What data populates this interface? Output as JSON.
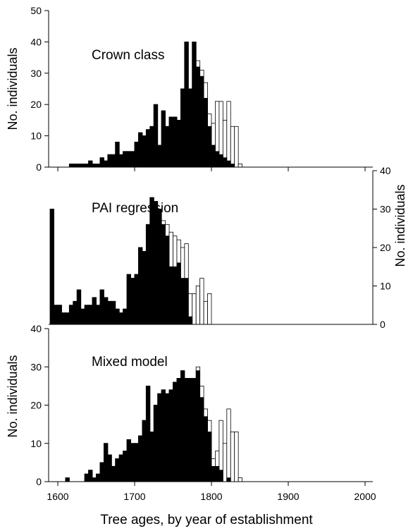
{
  "chart_data": [
    {
      "type": "bar",
      "title": "Crown class",
      "ylabel": "No. individuals",
      "xlabel": "",
      "xlim": [
        1600,
        2000
      ],
      "ylim": [
        0,
        50
      ],
      "yticks": [
        0,
        10,
        20,
        30,
        40,
        50
      ],
      "yaxis_side": "left",
      "bin_width": 5,
      "bin_start": 1590,
      "series": [
        {
          "fill": "#000000",
          "values": [
            0,
            0,
            0,
            0,
            0,
            1,
            1,
            1,
            1,
            1,
            2,
            1,
            1,
            3,
            2,
            4,
            4,
            8,
            4,
            5,
            5,
            5,
            8,
            11,
            10,
            12,
            13,
            20,
            7,
            18,
            13,
            16,
            16,
            15,
            25,
            40,
            25,
            40,
            32,
            29,
            22,
            13,
            7,
            5,
            4,
            3,
            2,
            1,
            0,
            0,
            0,
            0,
            0,
            0,
            0,
            0,
            0,
            0,
            0,
            0
          ]
        },
        {
          "fill": "#ffffff",
          "values": [
            0,
            0,
            0,
            0,
            0,
            1,
            1,
            1,
            1,
            1,
            2,
            1,
            1,
            3,
            2,
            4,
            4,
            8,
            4,
            5,
            5,
            5,
            8,
            11,
            10,
            12,
            13,
            20,
            7,
            18,
            13,
            16,
            16,
            15,
            25,
            40,
            25,
            40,
            34,
            31,
            27,
            17,
            14,
            21,
            21,
            15,
            21,
            13,
            13,
            1,
            0,
            0,
            0,
            0,
            0,
            0,
            0,
            0,
            0,
            0
          ]
        }
      ]
    },
    {
      "type": "bar",
      "title": "PAI regression",
      "ylabel": "No. individuals",
      "xlabel": "",
      "xlim": [
        1600,
        2000
      ],
      "ylim": [
        0,
        40
      ],
      "yticks": [
        0,
        10,
        20,
        30,
        40
      ],
      "yaxis_side": "right",
      "bin_width": 5,
      "bin_start": 1590,
      "series": [
        {
          "fill": "#000000",
          "values": [
            30,
            5,
            5,
            3,
            3,
            5,
            6,
            9,
            4,
            5,
            5,
            7,
            5,
            9,
            7,
            6,
            6,
            4,
            3,
            4,
            13,
            12,
            13,
            20,
            19,
            26,
            33,
            32,
            30,
            26,
            23,
            15,
            15,
            16,
            12,
            12,
            2,
            0,
            0,
            0,
            0,
            0,
            0,
            0,
            0,
            0,
            0,
            0,
            0,
            0,
            0,
            0,
            0,
            0,
            0,
            0,
            0,
            0,
            0,
            0
          ]
        },
        {
          "fill": "#ffffff",
          "values": [
            30,
            5,
            5,
            3,
            3,
            5,
            6,
            9,
            4,
            5,
            5,
            7,
            5,
            9,
            7,
            6,
            6,
            4,
            3,
            4,
            13,
            12,
            13,
            20,
            19,
            26,
            33,
            32,
            30,
            27,
            26,
            24,
            23,
            22,
            20,
            21,
            8,
            8,
            10,
            12,
            6,
            8,
            0,
            0,
            0,
            0,
            0,
            0,
            0,
            0,
            0,
            0,
            0,
            0,
            0,
            0,
            0,
            0,
            0,
            0
          ]
        }
      ]
    },
    {
      "type": "bar",
      "title": "Mixed model",
      "ylabel": "No. individuals",
      "xlabel": "",
      "xlim": [
        1600,
        2000
      ],
      "ylim": [
        0,
        40
      ],
      "yticks": [
        0,
        10,
        20,
        30,
        40
      ],
      "yaxis_side": "left",
      "bin_width": 5,
      "bin_start": 1590,
      "series": [
        {
          "fill": "#000000",
          "values": [
            0,
            0,
            0,
            0,
            1,
            0,
            0,
            0,
            0,
            2,
            3,
            1,
            2,
            5,
            10,
            7,
            4,
            6,
            7,
            8,
            11,
            10,
            10,
            12,
            16,
            25,
            13,
            20,
            23,
            24,
            23,
            24,
            26,
            27,
            29,
            27,
            27,
            27,
            29,
            22,
            17,
            13,
            4,
            4,
            3,
            0,
            1,
            0,
            0,
            0,
            0,
            0,
            0,
            0,
            0,
            0,
            0,
            0,
            0,
            0
          ]
        },
        {
          "fill": "#ffffff",
          "values": [
            0,
            0,
            0,
            0,
            1,
            0,
            0,
            0,
            0,
            2,
            3,
            1,
            2,
            5,
            10,
            7,
            4,
            6,
            7,
            8,
            11,
            10,
            10,
            12,
            16,
            25,
            13,
            20,
            23,
            24,
            23,
            24,
            26,
            27,
            29,
            27,
            27,
            27,
            30,
            25,
            19,
            16,
            6,
            8,
            16,
            10,
            19,
            13,
            13,
            1,
            0,
            0,
            0,
            0,
            0,
            0,
            0,
            0,
            0,
            0
          ]
        }
      ]
    }
  ],
  "shared_x": {
    "xticks": [
      1600,
      1700,
      1800,
      1900,
      2000
    ],
    "xlabel": "Tree ages, by year of establishment"
  }
}
